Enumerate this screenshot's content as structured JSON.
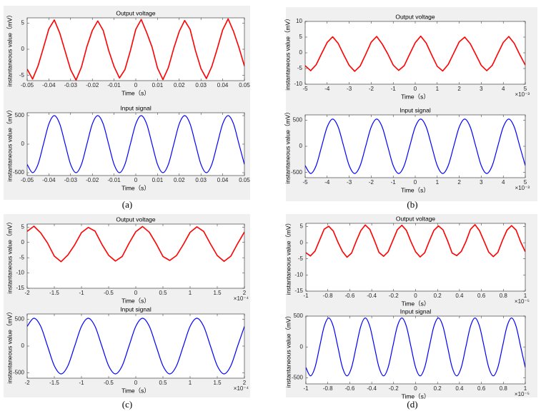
{
  "panel_labels": [
    "(a)",
    "(b)",
    "(c)",
    "(d)"
  ],
  "chart_data": [
    {
      "type": "line",
      "title": "Output voltage",
      "xlabel": "Time（s）",
      "ylabel": "instantaneous value（mV）",
      "x": [
        -0.05,
        -0.0475,
        -0.045,
        -0.0425,
        -0.04,
        -0.0375,
        -0.035,
        -0.0325,
        -0.03,
        -0.0275,
        -0.025,
        -0.0225,
        -0.02,
        -0.0175,
        -0.015,
        -0.0125,
        -0.01,
        -0.0075,
        -0.005,
        -0.0025,
        0,
        0.0025,
        0.005,
        0.0075,
        0.01,
        0.0125,
        0.015,
        0.0175,
        0.02,
        0.0225,
        0.025,
        0.0275,
        0.03,
        0.0325,
        0.035,
        0.0375,
        0.04,
        0.0425,
        0.045,
        0.0475,
        0.05
      ],
      "series": [
        {
          "color": "#ff0000",
          "values": [
            -3.8,
            -5.7,
            -3.2,
            0.3,
            3.9,
            5.6,
            3.1,
            -0.4,
            -3.9,
            -5.9,
            -3.4,
            0.5,
            3.6,
            5.4,
            3.6,
            -0.2,
            -3.3,
            -5.5,
            -3.9,
            -0.3,
            3.8,
            5.7,
            3.2,
            0.4,
            -3.6,
            -5.8,
            -3.5,
            0.2,
            3.4,
            5.5,
            3.8,
            -0.3,
            -3.7,
            -5.6,
            -3.3,
            0.1,
            3.7,
            5.8,
            3.4,
            0.3,
            -3.2
          ]
        }
      ],
      "xlim": [
        -0.05,
        0.05
      ],
      "xticks": [
        -0.05,
        -0.04,
        -0.03,
        -0.02,
        -0.01,
        0,
        0.01,
        0.02,
        0.03,
        0.04,
        0.05
      ],
      "ylim": [
        -6,
        6
      ],
      "yticks": [
        -5,
        0,
        5
      ]
    },
    {
      "type": "line",
      "title": "Input signal",
      "xlabel": "Time（s）",
      "ylabel": "instantaneous value（mV）",
      "smooth": true,
      "x": [
        -0.05,
        -0.0475,
        -0.045,
        -0.0425,
        -0.04,
        -0.0375,
        -0.035,
        -0.0325,
        -0.03,
        -0.0275,
        -0.025,
        -0.0225,
        -0.02,
        -0.0175,
        -0.015,
        -0.0125,
        -0.01,
        -0.0075,
        -0.005,
        -0.0025,
        0,
        0.0025,
        0.005,
        0.0075,
        0.01,
        0.0125,
        0.015,
        0.0175,
        0.02,
        0.0225,
        0.025,
        0.0275,
        0.03,
        0.0325,
        0.035,
        0.0375,
        0.04,
        0.0425,
        0.045,
        0.0475,
        0.05
      ],
      "series": [
        {
          "color": "#0000ff",
          "values": [
            -354,
            -500,
            -354,
            0,
            354,
            500,
            354,
            0,
            -354,
            -500,
            -354,
            0,
            354,
            500,
            354,
            0,
            -354,
            -500,
            -354,
            0,
            354,
            500,
            354,
            0,
            -354,
            -500,
            -354,
            0,
            354,
            500,
            354,
            0,
            -354,
            -500,
            -354,
            0,
            354,
            500,
            354,
            0,
            -354
          ]
        }
      ],
      "xlim": [
        -0.05,
        0.05
      ],
      "xticks": [
        -0.05,
        -0.04,
        -0.03,
        -0.02,
        -0.01,
        0,
        0.01,
        0.02,
        0.03,
        0.04,
        0.05
      ],
      "ylim": [
        -550,
        550
      ],
      "yticks": [
        -500,
        0,
        500
      ]
    },
    {
      "type": "line",
      "title": "Output voltage",
      "xlabel": "Time（s）",
      "ylabel": "instantaneous value（mV）",
      "x_multiplier": "×10⁻³",
      "x": [
        -5,
        -4.75,
        -4.5,
        -4.25,
        -4,
        -3.75,
        -3.5,
        -3.25,
        -3,
        -2.75,
        -2.5,
        -2.25,
        -2,
        -1.75,
        -1.5,
        -1.25,
        -1,
        -0.75,
        -0.5,
        -0.25,
        0,
        0.25,
        0.5,
        0.75,
        1,
        1.25,
        1.5,
        1.75,
        2,
        2.25,
        2.5,
        2.75,
        3,
        3.25,
        3.5,
        3.75,
        4,
        4.25,
        4.5,
        4.75,
        5
      ],
      "series": [
        {
          "color": "#ff0000",
          "values": [
            -4.1,
            -5.7,
            -3.8,
            -0.2,
            3.3,
            5.1,
            3.0,
            -0.6,
            -4.0,
            -5.9,
            -4.2,
            -0.5,
            3.4,
            5.2,
            2.8,
            -0.3,
            -3.9,
            -5.6,
            -4.1,
            -0.4,
            3.2,
            5.3,
            3.1,
            -0.7,
            -4.3,
            -5.8,
            -3.7,
            -0.1,
            3.5,
            5.0,
            2.9,
            -0.5,
            -4.0,
            -5.7,
            -4.0,
            -0.3,
            3.3,
            5.2,
            3.0,
            -0.6,
            -3.9
          ]
        }
      ],
      "xlim": [
        -5,
        5
      ],
      "xticks": [
        -5,
        -4,
        -3,
        -2,
        -1,
        0,
        1,
        2,
        3,
        4,
        5
      ],
      "ylim": [
        -10,
        10
      ],
      "yticks": [
        -10,
        -5,
        0,
        5,
        10
      ]
    },
    {
      "type": "line",
      "title": "Input signal",
      "xlabel": "Time（s）",
      "ylabel": "instantaneous value（mV）",
      "x_multiplier": "×10⁻³",
      "smooth": true,
      "x": [
        -5,
        -4.75,
        -4.5,
        -4.25,
        -4,
        -3.75,
        -3.5,
        -3.25,
        -3,
        -2.75,
        -2.5,
        -2.25,
        -2,
        -1.75,
        -1.5,
        -1.25,
        -1,
        -0.75,
        -0.5,
        -0.25,
        0,
        0.25,
        0.5,
        0.75,
        1,
        1.25,
        1.5,
        1.75,
        2,
        2.25,
        2.5,
        2.75,
        3,
        3.25,
        3.5,
        3.75,
        4,
        4.25,
        4.5,
        4.75,
        5
      ],
      "series": [
        {
          "color": "#0000ff",
          "values": [
            -368,
            -520,
            -368,
            0,
            368,
            520,
            368,
            0,
            -368,
            -520,
            -368,
            0,
            368,
            520,
            368,
            0,
            -368,
            -520,
            -368,
            0,
            368,
            520,
            368,
            0,
            -368,
            -520,
            -368,
            0,
            368,
            520,
            368,
            0,
            -368,
            -520,
            -368,
            0,
            368,
            520,
            368,
            0,
            -368
          ]
        }
      ],
      "xlim": [
        -5,
        5
      ],
      "xticks": [
        -5,
        -4,
        -3,
        -2,
        -1,
        0,
        1,
        2,
        3,
        4,
        5
      ],
      "ylim": [
        -600,
        600
      ],
      "yticks": [
        -500,
        0,
        500
      ]
    },
    {
      "type": "line",
      "title": "Output voltage",
      "xlabel": "Time（s）",
      "ylabel": "instantaneous value（mV）",
      "x_multiplier": "×10⁻⁴",
      "x": [
        -2,
        -1.875,
        -1.75,
        -1.625,
        -1.5,
        -1.375,
        -1.25,
        -1.125,
        -1,
        -0.875,
        -0.75,
        -0.625,
        -0.5,
        -0.375,
        -0.25,
        -0.125,
        0,
        0.125,
        0.25,
        0.375,
        0.5,
        0.625,
        0.75,
        0.875,
        1,
        1.125,
        1.25,
        1.375,
        1.5,
        1.625,
        1.75,
        1.875,
        2
      ],
      "series": [
        {
          "color": "#ff0000",
          "values": [
            3.6,
            5.3,
            3.1,
            -0.2,
            -4.5,
            -6.3,
            -4.1,
            -0.8,
            3.2,
            4.9,
            3.7,
            -0.6,
            -4.2,
            -6.1,
            -4.6,
            -0.3,
            3.5,
            5.2,
            3.3,
            -0.4,
            -4.6,
            -5.9,
            -4.3,
            -0.7,
            3.3,
            5.1,
            3.6,
            -0.5,
            -4.3,
            -6.2,
            -4.5,
            -0.4,
            3.4
          ]
        }
      ],
      "xlim": [
        -2,
        2
      ],
      "xticks": [
        -2,
        -1.5,
        -1,
        -0.5,
        0,
        0.5,
        1,
        1.5,
        2
      ],
      "ylim": [
        -15,
        6
      ],
      "yticks": [
        -15,
        -10,
        -5,
        0,
        5
      ]
    },
    {
      "type": "line",
      "title": "Input signal",
      "xlabel": "Time（s）",
      "ylabel": "instantaneous value（mV）",
      "x_multiplier": "×10⁻⁴",
      "smooth": true,
      "x": [
        -2,
        -1.875,
        -1.75,
        -1.625,
        -1.5,
        -1.375,
        -1.25,
        -1.125,
        -1,
        -0.875,
        -0.75,
        -0.625,
        -0.5,
        -0.375,
        -0.25,
        -0.125,
        0,
        0.125,
        0.25,
        0.375,
        0.5,
        0.625,
        0.75,
        0.875,
        1,
        1.125,
        1.25,
        1.375,
        1.5,
        1.625,
        1.75,
        1.875,
        2
      ],
      "series": [
        {
          "color": "#0000ff",
          "values": [
            368,
            520,
            368,
            0,
            -368,
            -520,
            -368,
            0,
            368,
            520,
            368,
            0,
            -368,
            -520,
            -368,
            0,
            368,
            520,
            368,
            0,
            -368,
            -520,
            -368,
            0,
            368,
            520,
            368,
            0,
            -368,
            -520,
            -368,
            0,
            368
          ]
        }
      ],
      "xlim": [
        -2,
        2
      ],
      "xticks": [
        -2,
        -1.5,
        -1,
        -0.5,
        0,
        0.5,
        1,
        1.5,
        2
      ],
      "ylim": [
        -600,
        600
      ],
      "yticks": [
        -500,
        0,
        500
      ]
    },
    {
      "type": "line",
      "title": "Output voltage",
      "xlabel": "Time（s）",
      "ylabel": "instantaneous value（mV）",
      "x_multiplier": "×10⁻⁵",
      "x": [
        -1,
        -0.9583,
        -0.9167,
        -0.875,
        -0.8333,
        -0.7917,
        -0.75,
        -0.7083,
        -0.6667,
        -0.625,
        -0.5833,
        -0.5417,
        -0.5,
        -0.4583,
        -0.4167,
        -0.375,
        -0.3333,
        -0.2917,
        -0.25,
        -0.2083,
        -0.1667,
        -0.125,
        -0.0833,
        -0.0417,
        0,
        0.0417,
        0.0833,
        0.125,
        0.1667,
        0.2083,
        0.25,
        0.2917,
        0.3333,
        0.375,
        0.4167,
        0.4583,
        0.5,
        0.5417,
        0.5833,
        0.625,
        0.6667,
        0.7083,
        0.75,
        0.7917,
        0.8333,
        0.875,
        0.9167,
        0.9583,
        1
      ],
      "series": [
        {
          "color": "#ff0000",
          "values": [
            -3.1,
            -4.1,
            -2.6,
            0.8,
            4.2,
            5.1,
            3.6,
            0.2,
            -2.7,
            -4.5,
            -3.2,
            0.4,
            3.7,
            5.5,
            4.1,
            0.7,
            -3.0,
            -4.2,
            -2.8,
            0.6,
            4.0,
            5.4,
            3.8,
            0.3,
            -2.8,
            -4.4,
            -3.1,
            0.5,
            3.8,
            5.2,
            4.0,
            0.6,
            -3.2,
            -4.0,
            -2.7,
            0.3,
            4.1,
            5.6,
            3.7,
            0.4,
            -2.9,
            -4.3,
            -3.0,
            0.7,
            3.9,
            5.3,
            3.9,
            0.2,
            -2.8
          ]
        }
      ],
      "xlim": [
        -1,
        1
      ],
      "xticks": [
        -1,
        -0.8,
        -0.6,
        -0.4,
        -0.2,
        0,
        0.2,
        0.4,
        0.6,
        0.8,
        1
      ],
      "ylim": [
        -15,
        6
      ],
      "yticks": [
        -15,
        -10,
        -5,
        0,
        5
      ]
    },
    {
      "type": "line",
      "title": "Input signal",
      "xlabel": "Time（s）",
      "ylabel": "instantaneous value（mV）",
      "x_multiplier": "×10⁻⁵",
      "smooth": true,
      "x": [
        -1,
        -0.9583,
        -0.9167,
        -0.875,
        -0.8333,
        -0.7917,
        -0.75,
        -0.7083,
        -0.6667,
        -0.625,
        -0.5833,
        -0.5417,
        -0.5,
        -0.4583,
        -0.4167,
        -0.375,
        -0.3333,
        -0.2917,
        -0.25,
        -0.2083,
        -0.1667,
        -0.125,
        -0.0833,
        -0.0417,
        0,
        0.0417,
        0.0833,
        0.125,
        0.1667,
        0.2083,
        0.25,
        0.2917,
        0.3333,
        0.375,
        0.4167,
        0.4583,
        0.5,
        0.5417,
        0.5833,
        0.625,
        0.6667,
        0.7083,
        0.75,
        0.7917,
        0.8333,
        0.875,
        0.9167,
        0.9583,
        1
      ],
      "series": [
        {
          "color": "#0000ff",
          "values": [
            -332,
            -470,
            -332,
            0,
            332,
            470,
            332,
            0,
            -332,
            -470,
            -332,
            0,
            332,
            470,
            332,
            0,
            -332,
            -470,
            -332,
            0,
            332,
            470,
            332,
            0,
            -332,
            -470,
            -332,
            0,
            332,
            470,
            332,
            0,
            -332,
            -470,
            -332,
            0,
            332,
            470,
            332,
            0,
            -332,
            -470,
            -332,
            0,
            332,
            470,
            332,
            0,
            -332
          ]
        }
      ],
      "xlim": [
        -1,
        1
      ],
      "xticks": [
        -1,
        -0.8,
        -0.6,
        -0.4,
        -0.2,
        0,
        0.2,
        0.4,
        0.6,
        0.8,
        1
      ],
      "ylim": [
        -600,
        500
      ],
      "yticks": [
        -500,
        0,
        500
      ]
    }
  ]
}
